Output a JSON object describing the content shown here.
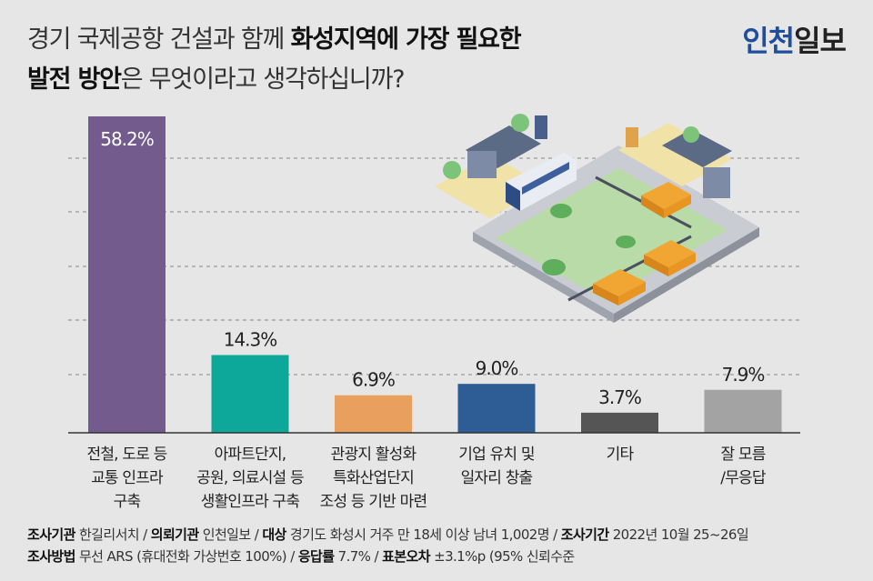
{
  "title": {
    "line1_plain": "경기 국제공항 건설과 함께 ",
    "line1_bold": "화성지역에 가장 필요한",
    "line2_bold": "발전 방안",
    "line2_plain": "은 무엇이라고 생각하십니까?"
  },
  "logo": {
    "part1": "인천",
    "part2": "일보"
  },
  "illustration": "city-bus-taxi-illustration",
  "chart_data": {
    "type": "bar",
    "categories": [
      [
        "전철, 도로 등",
        "교통 인프라",
        "구축"
      ],
      [
        "아파트단지,",
        "공원, 의료시설 등",
        "생활인프라 구축"
      ],
      [
        "관광지 활성화",
        "특화산업단지",
        "조성 등 기반 마련"
      ],
      [
        "기업 유치 및",
        "일자리 창출"
      ],
      [
        "기타"
      ],
      [
        "잘 모름",
        "/무응답"
      ]
    ],
    "values": [
      58.2,
      14.3,
      6.9,
      9.0,
      3.7,
      7.9
    ],
    "value_labels": [
      "58.2%",
      "14.3%",
      "6.9%",
      "9.0%",
      "3.7%",
      "7.9%"
    ],
    "colors": [
      "#745b8e",
      "#0ea89a",
      "#e9a05f",
      "#2e5d95",
      "#555555",
      "#a3a3a3"
    ],
    "ylim": [
      0,
      58.2
    ],
    "grid": true
  },
  "footer": {
    "line1": [
      {
        "label": "조사기관",
        "value": "한길리서치"
      },
      {
        "label": "의뢰기관",
        "value": "인천일보"
      },
      {
        "label": "대상",
        "value": "경기도 화성시 거주 만 18세 이상 남녀 1,002명"
      },
      {
        "label": "조사기간",
        "value": "2022년 10월 25~26일"
      }
    ],
    "line2": [
      {
        "label": "조사방법",
        "value": "무선 ARS (휴대전화 가상번호 100%)"
      },
      {
        "label": "응답률",
        "value": "7.7%"
      },
      {
        "label": "표본오차",
        "value": "±3.1%p (95% 신뢰수준"
      }
    ]
  }
}
